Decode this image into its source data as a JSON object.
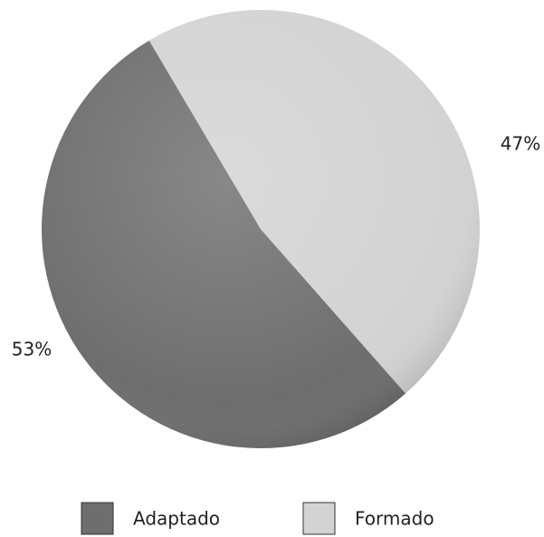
{
  "chart_data": {
    "type": "pie",
    "categories": [
      "Adaptado",
      "Formado"
    ],
    "values": [
      53,
      47
    ],
    "value_labels": [
      "53%",
      "47%"
    ],
    "colors": [
      "#6e6e6e",
      "#d3d3d3"
    ],
    "legend": "bottom"
  }
}
